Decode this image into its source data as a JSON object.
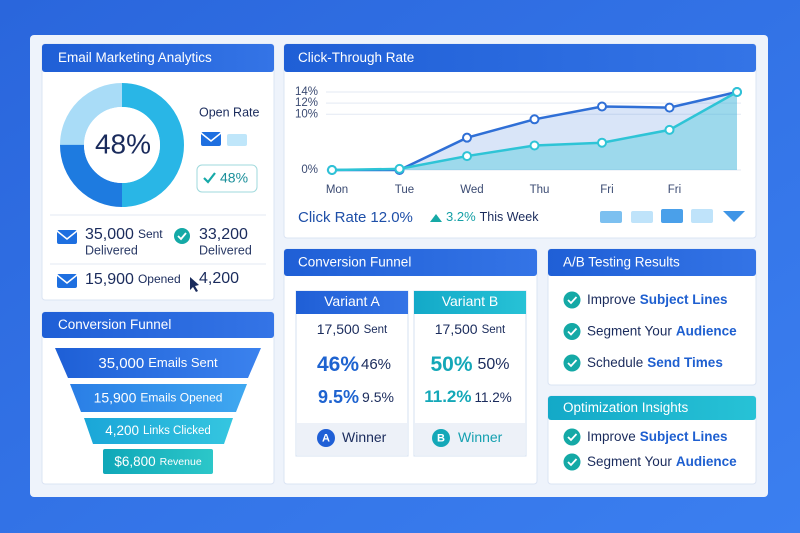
{
  "email_analytics": {
    "title": "Email Marketing Analytics",
    "donut_label": "48%",
    "open_rate_label": "Open Rate",
    "open_rate_badge": "48%",
    "stats": [
      {
        "value": "35,000",
        "unit": "Sent",
        "caption": "Delivered"
      },
      {
        "value": "33,200",
        "caption": "Delivered"
      },
      {
        "value": "15,900",
        "unit": "Opened"
      },
      {
        "value": "4,200"
      }
    ]
  },
  "chart_data": {
    "type": "line",
    "title": "Click-Through Rate",
    "categories": [
      "Mon",
      "Tue",
      "Wed",
      "Thu",
      "Fri",
      "Fri",
      null
    ],
    "series": [
      {
        "color": "#2f6fd6",
        "values": [
          0,
          0,
          5.8,
          9.1,
          11.4,
          11.2,
          14
        ]
      },
      {
        "color": "#2ec4d6",
        "values": [
          0,
          0.2,
          2.5,
          4.4,
          4.9,
          7.2,
          14
        ]
      }
    ],
    "ylim": [
      0,
      14
    ],
    "yticks": [
      {
        "value": 0,
        "label": "0%"
      },
      {
        "value": 10,
        "label": "10%"
      },
      {
        "value": 12,
        "label": "12%"
      },
      {
        "value": 14,
        "label": "14%"
      }
    ],
    "grid": true,
    "footer": {
      "label": "Click Rate",
      "value": "12.0%",
      "change": "3.2%",
      "period": "This Week"
    }
  },
  "funnel": {
    "title": "Conversion Funnel",
    "stages": [
      {
        "value": "35,000",
        "label": "Emails Sent"
      },
      {
        "value": "15,900",
        "label": "Emails Opened"
      },
      {
        "value": "4,200",
        "label": "Links Clicked"
      },
      {
        "value": "$6,800",
        "label": "Revenue"
      }
    ]
  },
  "variants": {
    "title": "Conversion Funnel",
    "columns": [
      {
        "name": "Variant A",
        "sent": "17,500",
        "sent_unit": "Sent",
        "rate1_big": "46%",
        "rate1_small": "46%",
        "rate2_big": "9.5%",
        "rate2_small": "9.5%",
        "badge": "A",
        "result": "Winner"
      },
      {
        "name": "Variant B",
        "sent": "17,500",
        "sent_unit": "Sent",
        "rate1_big": "50%",
        "rate1_small": "50%",
        "rate2_big": "11.2%",
        "rate2_small": "11.2%",
        "badge": "B",
        "result": "Winner"
      }
    ]
  },
  "ab_testing": {
    "title": "A/B Testing Results",
    "items": [
      {
        "text": "Improve",
        "highlight": "Subject Lines"
      },
      {
        "text": "Segment Your",
        "highlight": "Audience"
      },
      {
        "text": "Schedule",
        "highlight": "Send Times"
      }
    ]
  },
  "insights": {
    "title": "Optimization Insights",
    "items": [
      {
        "text": "Improve",
        "highlight": "Subject Lines"
      },
      {
        "text": "Segment Your",
        "highlight": "Audience"
      }
    ]
  }
}
